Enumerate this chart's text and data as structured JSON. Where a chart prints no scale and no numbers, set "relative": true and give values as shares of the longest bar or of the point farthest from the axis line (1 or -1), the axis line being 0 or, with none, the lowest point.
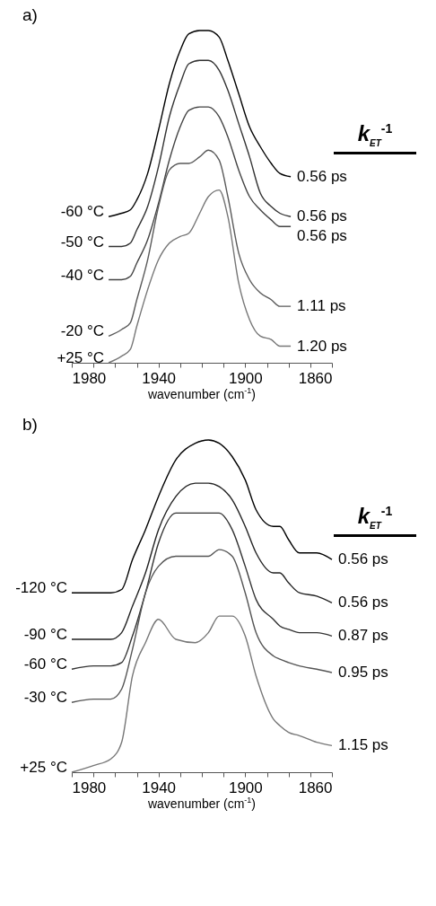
{
  "chart_data": [
    {
      "type": "line",
      "title": "a)",
      "xlabel": "wavenumber (cm$^{-1}$)",
      "relative": true,
      "xlim": [
        1980,
        1860
      ],
      "xticks": [
        1980,
        {
          "value": 1970,
          "label": null
        },
        {
          "value": 1960,
          "label": null
        },
        {
          "value": 1950,
          "label": null
        },
        1940,
        {
          "value": 1930,
          "label": null
        },
        {
          "value": 1920,
          "label": null
        },
        {
          "value": 1910,
          "label": null
        },
        1900,
        {
          "value": 1890,
          "label": null
        },
        {
          "value": 1880,
          "label": null
        },
        {
          "value": 1870,
          "label": null
        },
        1860
      ],
      "x": [
        1963,
        1957,
        1953,
        1950,
        1945,
        1940,
        1935,
        1930,
        1926,
        1921,
        1917,
        1912,
        1908,
        1903,
        1898,
        1893,
        1888,
        1884,
        1879
      ],
      "series": [
        {
          "name": "-60 °C",
          "color": "#000000",
          "values": [
            0.44,
            0.45,
            0.46,
            0.49,
            0.57,
            0.7,
            0.84,
            0.94,
            0.99,
            1.0,
            1.0,
            0.98,
            0.91,
            0.81,
            0.71,
            0.65,
            0.6,
            0.57,
            0.56
          ]
        },
        {
          "name": "-50 °C",
          "color": "#333333",
          "values": [
            0.35,
            0.35,
            0.36,
            0.4,
            0.47,
            0.59,
            0.74,
            0.84,
            0.9,
            0.91,
            0.91,
            0.88,
            0.82,
            0.72,
            0.62,
            0.51,
            0.47,
            0.45,
            0.44
          ]
        },
        {
          "name": "-40 °C",
          "color": "#444444",
          "values": [
            0.25,
            0.25,
            0.26,
            0.3,
            0.37,
            0.48,
            0.61,
            0.71,
            0.76,
            0.77,
            0.77,
            0.74,
            0.68,
            0.58,
            0.5,
            0.46,
            0.43,
            0.41,
            0.41
          ]
        },
        {
          "name": "-20 °C",
          "color": "#5a5a5a",
          "values": [
            0.08,
            0.1,
            0.12,
            0.19,
            0.31,
            0.47,
            0.58,
            0.6,
            0.6,
            0.62,
            0.64,
            0.61,
            0.5,
            0.33,
            0.25,
            0.21,
            0.19,
            0.17,
            0.17
          ]
        },
        {
          "name": "+25 °C",
          "color": "#777777",
          "values": [
            0.0,
            0.02,
            0.04,
            0.11,
            0.22,
            0.31,
            0.36,
            0.38,
            0.39,
            0.45,
            0.5,
            0.52,
            0.44,
            0.24,
            0.13,
            0.08,
            0.07,
            0.05,
            0.05
          ]
        }
      ],
      "annotations": [
        "k$_{ET}$$^{-1}$",
        "0.56 ps",
        "0.56 ps",
        "0.56 ps",
        "1.11 ps",
        "1.20 ps"
      ]
    },
    {
      "type": "line",
      "title": "b)",
      "xlabel": "wavenumber (cm$^{-1}$)",
      "relative": true,
      "xlim": [
        1980,
        1860
      ],
      "xticks": [
        1980,
        {
          "value": 1970,
          "label": null
        },
        {
          "value": 1960,
          "label": null
        },
        {
          "value": 1950,
          "label": null
        },
        1940,
        {
          "value": 1930,
          "label": null
        },
        {
          "value": 1920,
          "label": null
        },
        {
          "value": 1910,
          "label": null
        },
        1900,
        {
          "value": 1890,
          "label": null
        },
        {
          "value": 1880,
          "label": null
        },
        {
          "value": 1870,
          "label": null
        },
        1860
      ],
      "x": [
        1980,
        1970,
        1962,
        1957,
        1952,
        1946,
        1940,
        1932,
        1923,
        1917,
        1912,
        1906,
        1900,
        1895,
        1887,
        1884,
        1880,
        1875,
        1867,
        1860
      ],
      "series": [
        {
          "name": "-120 °C",
          "color": "#000000",
          "values": [
            0.54,
            0.54,
            0.54,
            0.55,
            0.64,
            0.73,
            0.83,
            0.94,
            0.99,
            1.0,
            0.99,
            0.95,
            0.88,
            0.79,
            0.74,
            0.74,
            0.7,
            0.66,
            0.66,
            0.64
          ]
        },
        {
          "name": "-90 °C",
          "color": "#222222",
          "values": [
            0.4,
            0.4,
            0.4,
            0.42,
            0.5,
            0.6,
            0.73,
            0.83,
            0.87,
            0.87,
            0.86,
            0.82,
            0.74,
            0.66,
            0.6,
            0.6,
            0.57,
            0.54,
            0.53,
            0.51
          ]
        },
        {
          "name": "-60 °C",
          "color": "#333333",
          "values": [
            0.31,
            0.32,
            0.32,
            0.33,
            0.41,
            0.54,
            0.69,
            0.78,
            0.78,
            0.78,
            0.78,
            0.73,
            0.62,
            0.52,
            0.46,
            0.44,
            0.43,
            0.42,
            0.42,
            0.41
          ]
        },
        {
          "name": "-30 °C",
          "color": "#555555",
          "values": [
            0.21,
            0.22,
            0.22,
            0.25,
            0.37,
            0.54,
            0.62,
            0.65,
            0.65,
            0.65,
            0.67,
            0.65,
            0.54,
            0.42,
            0.35,
            0.34,
            0.33,
            0.32,
            0.31,
            0.3
          ]
        },
        {
          "name": "+25 °C",
          "color": "#777777",
          "values": [
            0.0,
            0.02,
            0.04,
            0.09,
            0.29,
            0.39,
            0.46,
            0.4,
            0.39,
            0.42,
            0.47,
            0.47,
            0.41,
            0.29,
            0.16,
            0.14,
            0.12,
            0.11,
            0.09,
            0.08
          ]
        }
      ],
      "annotations": [
        "k$_{ET}$$^{-1}$",
        "0.56 ps",
        "0.56 ps",
        "0.87 ps",
        "0.95 ps",
        "1.15 ps"
      ]
    }
  ]
}
